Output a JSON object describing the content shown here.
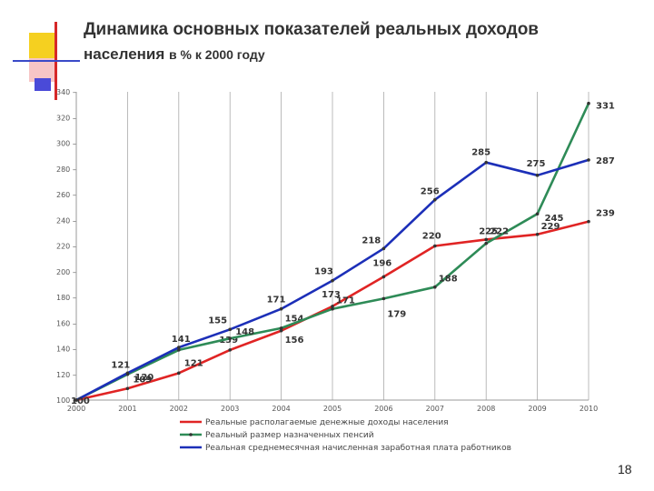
{
  "slide": {
    "title_line1": "Динамика основных показателей реальных доходов",
    "title_line2_main": "населения",
    "title_line2_sub": "в % к 2000 году",
    "slide_number": "18"
  },
  "chart_data": {
    "type": "line",
    "x": [
      "2000",
      "2001",
      "2002",
      "2003",
      "2004",
      "2005",
      "2006",
      "2007",
      "2008",
      "2009",
      "2010"
    ],
    "ylim": [
      100,
      340
    ],
    "yticks": [
      100,
      120,
      140,
      160,
      180,
      200,
      220,
      240,
      260,
      280,
      300,
      320,
      340
    ],
    "grid": "vertical",
    "legend_position": "bottom",
    "series": [
      {
        "name": "Реальные располагаемые денежные доходы населения",
        "color": "#e02424",
        "values": [
          100,
          109,
          121,
          139,
          154,
          173,
          196,
          220,
          225,
          229,
          239
        ],
        "labels": [
          "",
          "109",
          "121",
          "139",
          "154",
          "173",
          "196",
          "220",
          "225",
          "229",
          "239"
        ]
      },
      {
        "name": "Реальный размер назначенных пенсий",
        "color": "#2e8b57",
        "values": [
          100,
          120,
          139,
          148,
          156,
          171,
          179,
          188,
          222,
          245,
          331
        ],
        "labels": [
          "",
          "120",
          "",
          "148",
          "156",
          "171",
          "179",
          "188",
          "222",
          "245",
          "331"
        ]
      },
      {
        "name": "Реальная среднемесячная начисленная заработная плата работников",
        "color": "#1c2fb8",
        "values": [
          100,
          121,
          141,
          155,
          171,
          193,
          218,
          256,
          285,
          275,
          287
        ],
        "labels": [
          "100",
          "121",
          "141",
          "155",
          "171",
          "193",
          "218",
          "256",
          "285",
          "275",
          "287"
        ]
      }
    ]
  }
}
